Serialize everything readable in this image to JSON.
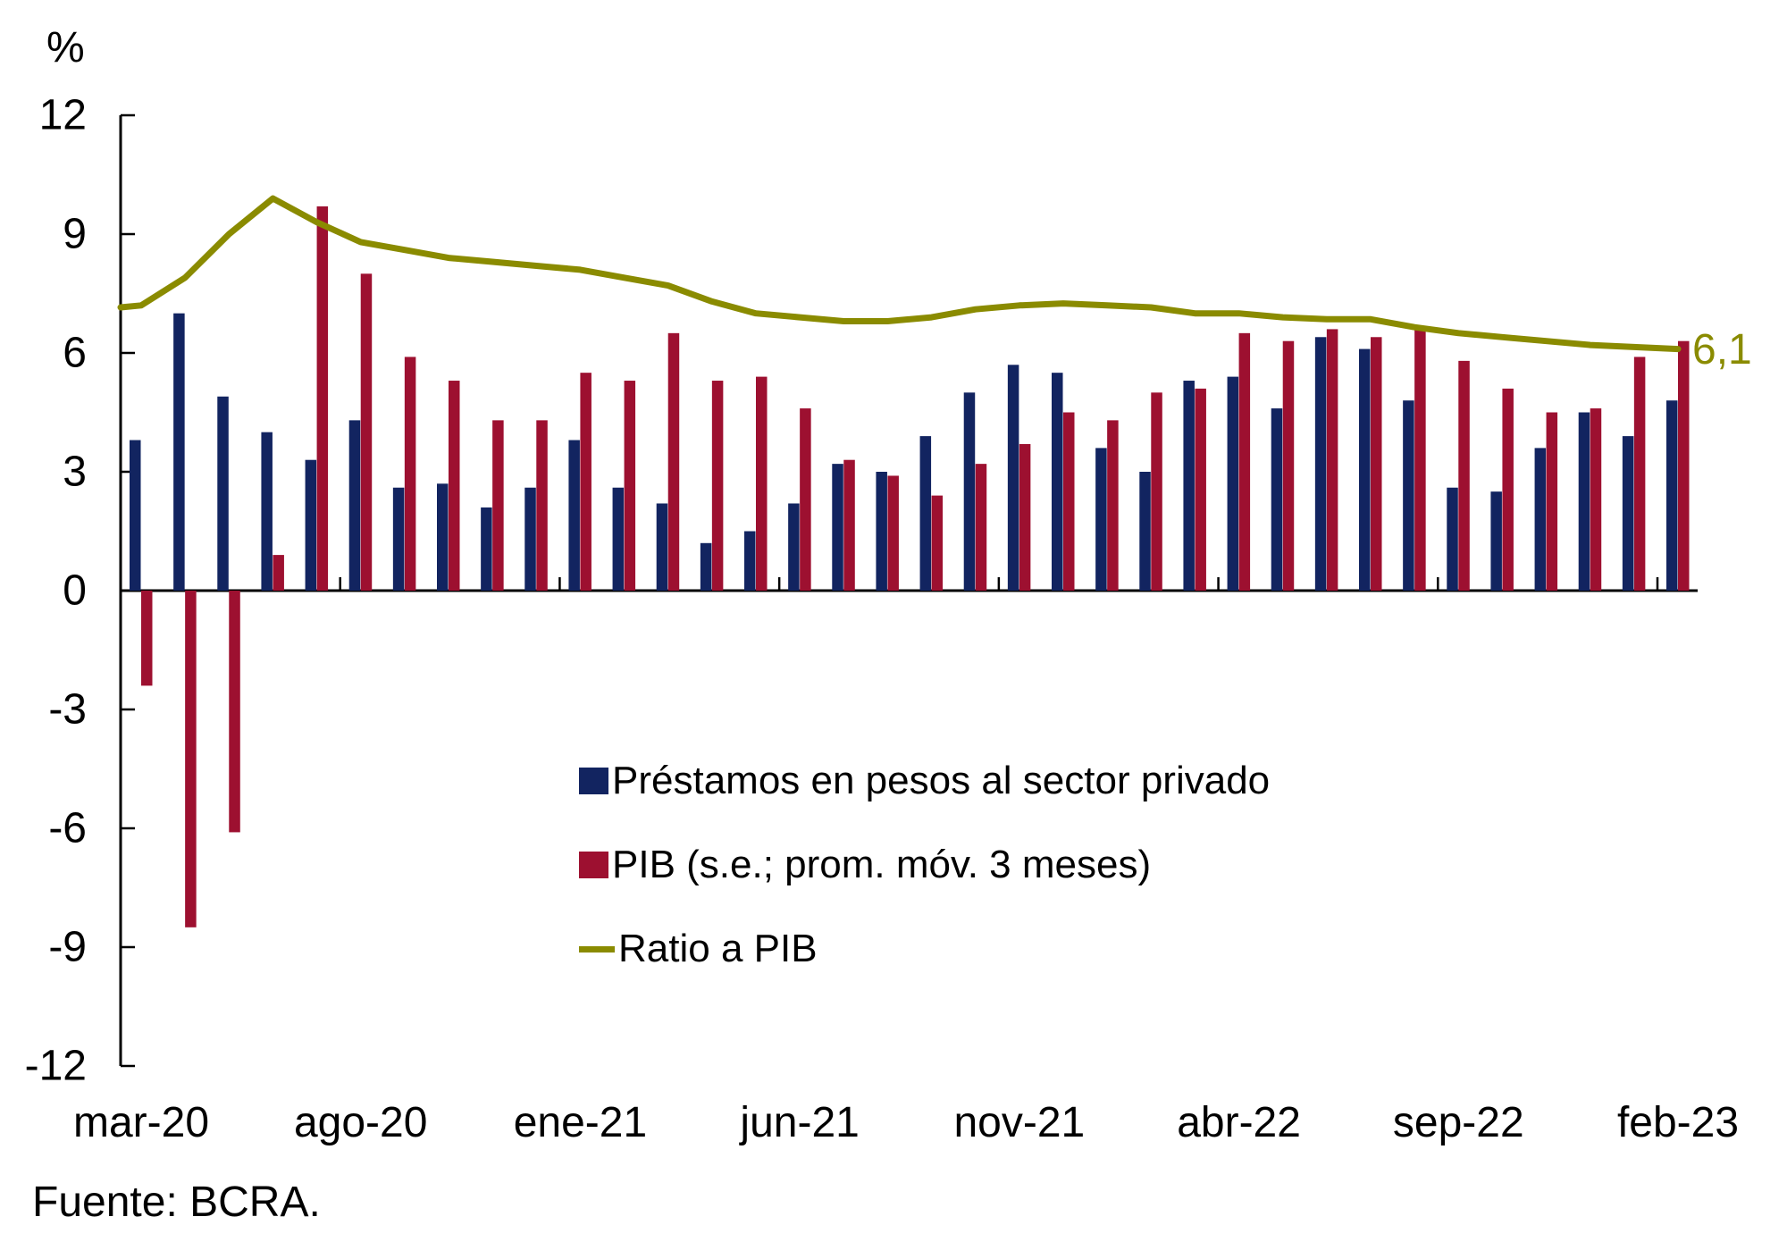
{
  "chart": {
    "unit_label": "%",
    "source": "Fuente: BCRA.",
    "line_end_label": "6,1",
    "colors": {
      "prestamos": "#122460",
      "pib": "#9d1030",
      "ratio": "#8a8b00",
      "axis": "#000000",
      "text": "#000000"
    },
    "legend": {
      "items": [
        {
          "label": "Préstamos en pesos al sector privado",
          "swatch": "square",
          "color_key": "prestamos"
        },
        {
          "label": "PIB (s.e.; prom. móv. 3 meses)",
          "swatch": "square",
          "color_key": "pib"
        },
        {
          "label": "Ratio a PIB",
          "swatch": "line",
          "color_key": "ratio"
        }
      ]
    }
  },
  "chart_data": {
    "type": "bar",
    "title": "",
    "xlabel": "",
    "ylabel": "%",
    "ylim": [
      -12,
      12
    ],
    "ytick_step": 3,
    "grid": false,
    "legend_position": "inside-bottom-center",
    "categories": [
      "mar-20",
      "abr-20",
      "may-20",
      "jun-20",
      "jul-20",
      "ago-20",
      "sep-20",
      "oct-20",
      "nov-20",
      "dic-20",
      "ene-21",
      "feb-21",
      "mar-21",
      "abr-21",
      "may-21",
      "jun-21",
      "jul-21",
      "ago-21",
      "sep-21",
      "oct-21",
      "nov-21",
      "dic-21",
      "ene-22",
      "feb-22",
      "mar-22",
      "abr-22",
      "may-22",
      "jun-22",
      "jul-22",
      "ago-22",
      "sep-22",
      "oct-22",
      "nov-22",
      "dic-22",
      "ene-23",
      "feb-23"
    ],
    "xtick_positions": [
      0,
      5,
      10,
      15,
      20,
      25,
      30,
      35
    ],
    "xtick_labels_shown": [
      "mar-20",
      "ago-20",
      "ene-21",
      "jun-21",
      "nov-21",
      "abr-22",
      "sep-22",
      "feb-23"
    ],
    "series": [
      {
        "name": "Préstamos en pesos al sector privado",
        "type": "bar",
        "color_key": "prestamos",
        "values": [
          3.8,
          7.0,
          4.9,
          4.0,
          3.3,
          4.3,
          2.6,
          2.7,
          2.1,
          2.6,
          3.8,
          2.6,
          2.2,
          1.2,
          1.5,
          2.2,
          3.2,
          3.0,
          3.9,
          5.0,
          5.7,
          5.5,
          3.6,
          3.0,
          5.3,
          5.4,
          4.6,
          6.4,
          6.1,
          4.8,
          2.6,
          2.5,
          3.6,
          4.5,
          3.9,
          4.8
        ]
      },
      {
        "name": "PIB (s.e.; prom. móv. 3 meses)",
        "type": "bar",
        "color_key": "pib",
        "values": [
          -2.4,
          -8.5,
          -6.1,
          0.9,
          9.7,
          8.0,
          5.9,
          5.3,
          4.3,
          4.3,
          5.5,
          5.3,
          6.5,
          5.3,
          5.4,
          4.6,
          3.3,
          2.9,
          2.4,
          3.2,
          3.7,
          4.5,
          4.3,
          5.0,
          5.1,
          6.5,
          6.3,
          6.6,
          6.4,
          6.6,
          5.8,
          5.1,
          4.5,
          4.6,
          5.9,
          6.3
        ]
      },
      {
        "name": "Ratio a PIB",
        "type": "line",
        "color_key": "ratio",
        "axis_start_value": 7.15,
        "end_label": "6,1",
        "values": [
          7.2,
          7.9,
          9.0,
          9.9,
          9.3,
          8.8,
          8.6,
          8.4,
          8.3,
          8.2,
          8.1,
          7.9,
          7.7,
          7.3,
          7.0,
          6.9,
          6.8,
          6.8,
          6.9,
          7.1,
          7.2,
          7.25,
          7.2,
          7.15,
          7.0,
          7.0,
          6.9,
          6.85,
          6.85,
          6.65,
          6.5,
          6.4,
          6.3,
          6.2,
          6.15,
          6.1
        ]
      }
    ]
  }
}
